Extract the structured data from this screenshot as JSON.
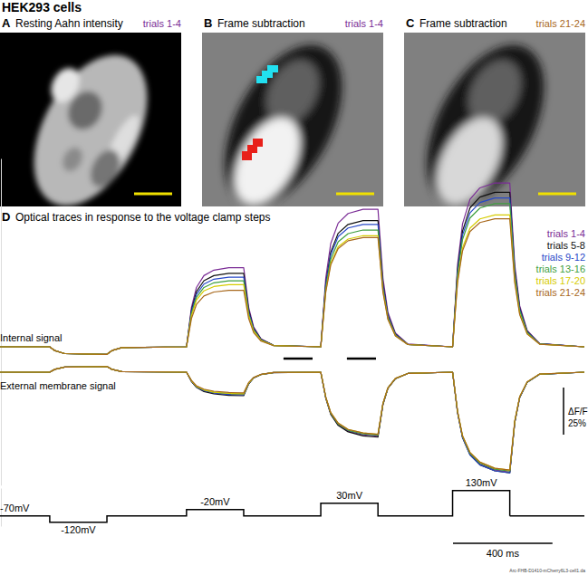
{
  "title": "HEK293 cells",
  "images": [
    {
      "label": "A",
      "title": "Resting Aahn intensity",
      "trials": "trials 1-4",
      "color": "#7b2d96"
    },
    {
      "label": "B",
      "title": "Frame subtraction",
      "trials": "trials 1-4",
      "color": "#7b2d96"
    },
    {
      "label": "C",
      "title": "Frame subtraction",
      "trials": "trials 21-24",
      "color": "#a8681c"
    }
  ],
  "footnote": "Arc-FHB-D1410-mCherry6L3-cell1.da",
  "chart_data": [
    {
      "type": "line",
      "panel": "D",
      "title": "Optical traces in response to the voltage clamp steps",
      "y_label": "Internal signal",
      "x": [
        0,
        200,
        220,
        260,
        430,
        450,
        490,
        750,
        770,
        790,
        820,
        860,
        920,
        980,
        1000,
        1020,
        1050,
        1100,
        1290,
        1310,
        1330,
        1360,
        1400,
        1460,
        1520,
        1540,
        1560,
        1590,
        1640,
        1820,
        1840,
        1860,
        1890,
        1930,
        1990,
        2050,
        2070,
        2090,
        2120,
        2170,
        2350
      ],
      "xlim": [
        0,
        2350
      ],
      "ylim": [
        -10,
        100
      ],
      "tick_labels": false,
      "legend": "top-right",
      "series": [
        {
          "name": "trials 1-4",
          "color": "#7b2d96",
          "values": [
            0,
            0,
            -2,
            -3.6,
            -4,
            -2,
            -0.4,
            0,
            21,
            31.5,
            37.8,
            40.7,
            42,
            42,
            21,
            10.5,
            4.2,
            0.8,
            0,
            36.5,
            54.8,
            65.7,
            70.8,
            73,
            73,
            36.5,
            18.3,
            7.3,
            1.5,
            0,
            43.5,
            65.3,
            78.3,
            84.4,
            87,
            87,
            43.5,
            21.8,
            8.7,
            1.7,
            0
          ]
        },
        {
          "name": "trials 5-8",
          "color": "#111111",
          "values": [
            0,
            0,
            -2,
            -3.6,
            -4,
            -2,
            -0.4,
            0,
            19.5,
            29.3,
            35.1,
            37.8,
            39,
            39,
            19.5,
            9.8,
            3.9,
            0.8,
            0,
            33.5,
            50.3,
            60.3,
            65,
            67,
            67,
            33.5,
            16.8,
            6.7,
            1.3,
            0,
            41,
            61.5,
            73.8,
            79.5,
            82,
            82,
            41,
            20.5,
            8.2,
            1.6,
            0
          ]
        },
        {
          "name": "trials 9-12",
          "color": "#2748c8",
          "values": [
            0,
            0,
            -2,
            -3.6,
            -4,
            -2,
            -0.4,
            0,
            18.5,
            27.8,
            33.3,
            35.9,
            37,
            37,
            18.5,
            9.3,
            3.7,
            0.7,
            0,
            32.5,
            48.8,
            58.5,
            63.1,
            65,
            65,
            32.5,
            16.3,
            6.5,
            1.3,
            0,
            39.5,
            59.3,
            71.1,
            76.6,
            79,
            79,
            39.5,
            19.8,
            7.9,
            1.6,
            0
          ]
        },
        {
          "name": "trials 13-16",
          "color": "#3f9f3f",
          "values": [
            0,
            0,
            -2,
            -3.6,
            -4,
            -2,
            -0.4,
            0,
            17.5,
            26.3,
            31.5,
            34,
            35,
            35,
            17.5,
            8.8,
            3.5,
            0.7,
            0,
            31,
            46.5,
            55.8,
            60.1,
            62,
            62,
            31,
            15.5,
            6.2,
            1.2,
            0,
            38,
            57,
            68.4,
            73.7,
            76,
            76,
            38,
            19,
            7.6,
            1.5,
            0
          ]
        },
        {
          "name": "trials 17-20",
          "color": "#d6cc00",
          "values": [
            0,
            0,
            -2,
            -3.6,
            -4,
            -2,
            -0.4,
            0,
            16.5,
            24.8,
            29.7,
            32,
            33,
            33,
            16.5,
            8.3,
            3.3,
            0.7,
            0,
            29.5,
            44.3,
            53.1,
            57.2,
            59,
            59,
            29.5,
            14.8,
            5.9,
            1.2,
            0,
            35,
            52.5,
            63,
            67.9,
            70,
            70,
            35,
            17.5,
            7,
            1.4,
            0
          ]
        },
        {
          "name": "trials 21-24",
          "color": "#a8681c",
          "values": [
            0,
            0,
            -2,
            -3.6,
            -4,
            -2,
            -0.4,
            0,
            15,
            22.5,
            27,
            29.1,
            30,
            30,
            15,
            7.5,
            3,
            0.6,
            0,
            29,
            43.5,
            52.2,
            56.3,
            58,
            58,
            29,
            14.5,
            5.8,
            1.2,
            0,
            34,
            51,
            61.2,
            66,
            68,
            68,
            34,
            17,
            6.8,
            1.4,
            0
          ]
        }
      ],
      "intervals": [
        [
          1140,
          1257
        ],
        [
          1395,
          1512
        ]
      ],
      "y_scale_bar": {
        "value": 25,
        "label": "25%",
        "title": "ΔF/F"
      }
    },
    {
      "type": "line",
      "y_label": "External membrane signal",
      "x": [
        0,
        200,
        220,
        260,
        430,
        450,
        490,
        750,
        770,
        790,
        820,
        860,
        920,
        980,
        1000,
        1020,
        1050,
        1100,
        1290,
        1310,
        1330,
        1360,
        1400,
        1460,
        1520,
        1540,
        1560,
        1590,
        1640,
        1820,
        1840,
        1860,
        1890,
        1930,
        1990,
        2050,
        2070,
        2090,
        2120,
        2170,
        2350
      ],
      "xlim": [
        0,
        2350
      ],
      "ylim": [
        -60,
        10
      ],
      "tick_labels": false,
      "series": [
        {
          "color": "#7b2d96",
          "values": [
            0,
            0,
            1.5,
            2.7,
            3,
            1.5,
            0.3,
            0,
            -4.8,
            -7.8,
            -9.8,
            -11,
            -11.8,
            -12,
            -6,
            -3,
            -1.2,
            -0.2,
            0,
            -13.6,
            -22.1,
            -27.9,
            -31.3,
            -33.3,
            -34,
            -17,
            -8.5,
            -3.4,
            -0.7,
            0,
            -21.2,
            -34.5,
            -43.5,
            -48.8,
            -51.9,
            -53,
            -26.5,
            -13.3,
            -5.3,
            -1.1,
            0
          ]
        },
        {
          "color": "#111111",
          "values": [
            0,
            0,
            1.5,
            2.7,
            3,
            1.5,
            0.3,
            0,
            -5,
            -8.1,
            -10.3,
            -11.5,
            -12.3,
            -12.5,
            -6.3,
            -3.1,
            -1.3,
            -0.3,
            0,
            -13.8,
            -22.4,
            -28.3,
            -31.7,
            -33.8,
            -34.5,
            -17.3,
            -8.6,
            -3.5,
            -0.7,
            0,
            -21.4,
            -34.8,
            -43.9,
            -49.2,
            -52.4,
            -53.5,
            -26.8,
            -13.4,
            -5.4,
            -1.1,
            0
          ]
        },
        {
          "color": "#2748c8",
          "values": [
            0,
            0,
            1.5,
            2.7,
            3,
            1.5,
            0.3,
            0,
            -4.8,
            -7.8,
            -9.8,
            -11,
            -11.8,
            -12,
            -6,
            -3,
            -1.2,
            -0.2,
            0,
            -13.4,
            -21.8,
            -27.5,
            -30.8,
            -32.8,
            -33.5,
            -16.8,
            -8.4,
            -3.4,
            -0.7,
            0,
            -21.4,
            -34.8,
            -43.9,
            -49.2,
            -52.4,
            -53.5,
            -26.8,
            -13.4,
            -5.4,
            -1.1,
            0
          ]
        },
        {
          "color": "#3f9f3f",
          "values": [
            0,
            0,
            1.5,
            2.7,
            3,
            1.5,
            0.3,
            0,
            -4.6,
            -7.5,
            -9.4,
            -10.6,
            -11.3,
            -11.5,
            -5.8,
            -2.9,
            -1.2,
            -0.2,
            0,
            -13.4,
            -21.8,
            -27.5,
            -30.8,
            -32.8,
            -33.5,
            -16.8,
            -8.4,
            -3.4,
            -0.7,
            0,
            -21,
            -34.1,
            -43.1,
            -48.3,
            -51.5,
            -52.5,
            -26.3,
            -13.1,
            -5.3,
            -1.1,
            0
          ]
        },
        {
          "color": "#d6cc00",
          "values": [
            0,
            0,
            1.5,
            2.7,
            3,
            1.5,
            0.3,
            0,
            -4.6,
            -7.5,
            -9.4,
            -10.6,
            -11.3,
            -11.5,
            -5.8,
            -2.9,
            -1.2,
            -0.2,
            0,
            -13.2,
            -21.5,
            -27.1,
            -30.4,
            -32.3,
            -33,
            -16.5,
            -8.3,
            -3.3,
            -0.7,
            0,
            -20.8,
            -33.8,
            -42.6,
            -47.8,
            -51,
            -52,
            -26,
            -13,
            -5.2,
            -1,
            0
          ]
        },
        {
          "color": "#a8681c",
          "values": [
            0,
            0,
            1.5,
            2.7,
            3,
            1.5,
            0.3,
            0,
            -4.4,
            -7.2,
            -9,
            -10.1,
            -10.8,
            -11,
            -5.5,
            -2.8,
            -1.1,
            -0.2,
            0,
            -13.2,
            -21.5,
            -27.1,
            -30.4,
            -32.3,
            -33,
            -16.5,
            -8.3,
            -3.3,
            -0.7,
            0,
            -20.8,
            -33.8,
            -42.6,
            -47.8,
            -51,
            -52,
            -26,
            -13,
            -5.2,
            -1,
            0
          ]
        }
      ]
    },
    {
      "type": "step",
      "x": [
        0,
        200,
        430,
        750,
        980,
        1290,
        1520,
        1820,
        2050
      ],
      "values": [
        -70,
        -120,
        -70,
        -20,
        -70,
        30,
        -70,
        130,
        -70
      ],
      "value_labels": [
        "-70mV",
        "-120mV",
        null,
        "-20mV",
        null,
        "30mV",
        null,
        "130mV",
        null
      ],
      "xlim": [
        0,
        2350
      ],
      "ylim": [
        -150,
        150
      ],
      "tick_labels": false,
      "x_scale_bar": {
        "value": 400,
        "label": "400 ms"
      }
    }
  ]
}
